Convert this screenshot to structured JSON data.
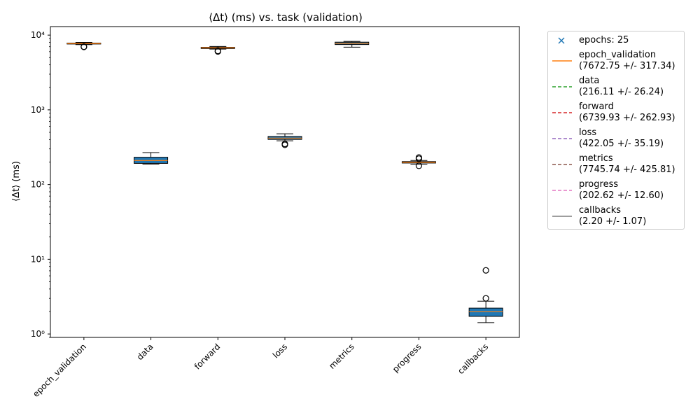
{
  "chart_data": {
    "type": "box",
    "title": "⟨Δt⟩ (ms) vs. task (validation)",
    "ylabel": "⟨Δt⟩ (ms)",
    "xlabel": "",
    "yscale": "log",
    "ylim": [
      0.9,
      13000
    ],
    "grid": false,
    "legend_position": "outside-right",
    "categories": [
      "epoch_validation",
      "data",
      "forward",
      "loss",
      "metrics",
      "progress",
      "callbacks"
    ],
    "y_tick_labels": [
      {
        "value": 1,
        "label": "10⁰"
      },
      {
        "value": 10,
        "label": "10¹"
      },
      {
        "value": 100,
        "label": "10²"
      },
      {
        "value": 1000,
        "label": "10³"
      },
      {
        "value": 10000,
        "label": "10⁴"
      }
    ],
    "boxes": [
      {
        "category": "epoch_validation",
        "whisker_low": 7450,
        "q1": 7600,
        "median": 7700,
        "q3": 7820,
        "whisker_high": 8000,
        "outliers": [
          6950,
          7000
        ]
      },
      {
        "category": "data",
        "whisker_low": 188,
        "q1": 192,
        "median": 210,
        "q3": 232,
        "whisker_high": 268,
        "outliers": []
      },
      {
        "category": "forward",
        "whisker_low": 6500,
        "q1": 6620,
        "median": 6750,
        "q3": 6870,
        "whisker_high": 7050,
        "outliers": [
          6050,
          6150
        ]
      },
      {
        "category": "loss",
        "whisker_low": 385,
        "q1": 402,
        "median": 418,
        "q3": 440,
        "whisker_high": 478,
        "outliers": [
          340,
          350
        ]
      },
      {
        "category": "metrics",
        "whisker_low": 6900,
        "q1": 7480,
        "median": 7750,
        "q3": 8050,
        "whisker_high": 8250,
        "outliers": []
      },
      {
        "category": "progress",
        "whisker_low": 187,
        "q1": 194,
        "median": 198,
        "q3": 203,
        "whisker_high": 210,
        "outliers": [
          178,
          222,
          230
        ]
      },
      {
        "category": "callbacks",
        "whisker_low": 1.42,
        "q1": 1.72,
        "median": 1.98,
        "q3": 2.22,
        "whisker_high": 2.75,
        "outliers": [
          3.0,
          7.1
        ]
      }
    ],
    "legend": [
      {
        "marker": "x",
        "color": "#1f77b4",
        "label": "epochs: 25",
        "sublabel": ""
      },
      {
        "marker": "solid",
        "color": "#ff7f0e",
        "label": "epoch_validation",
        "sublabel": "(7672.75 +/- 317.34)"
      },
      {
        "marker": "dashed",
        "color": "#2ca02c",
        "label": "data",
        "sublabel": "(216.11 +/- 26.24)"
      },
      {
        "marker": "dashed",
        "color": "#d62728",
        "label": "forward",
        "sublabel": "(6739.93 +/- 262.93)"
      },
      {
        "marker": "dashed",
        "color": "#9467bd",
        "label": "loss",
        "sublabel": "(422.05 +/- 35.19)"
      },
      {
        "marker": "dashed",
        "color": "#8c564b",
        "label": "metrics",
        "sublabel": "(7745.74 +/- 425.81)"
      },
      {
        "marker": "dashed",
        "color": "#e377c2",
        "label": "progress",
        "sublabel": "(202.62 +/- 12.60)"
      },
      {
        "marker": "solid",
        "color": "#7f7f7f",
        "label": "callbacks",
        "sublabel": "(2.20 +/- 1.07)"
      }
    ],
    "colors": {
      "box_fill": "#1f77b4",
      "median": "#ff7f0e",
      "box_edge": "#000000"
    }
  }
}
